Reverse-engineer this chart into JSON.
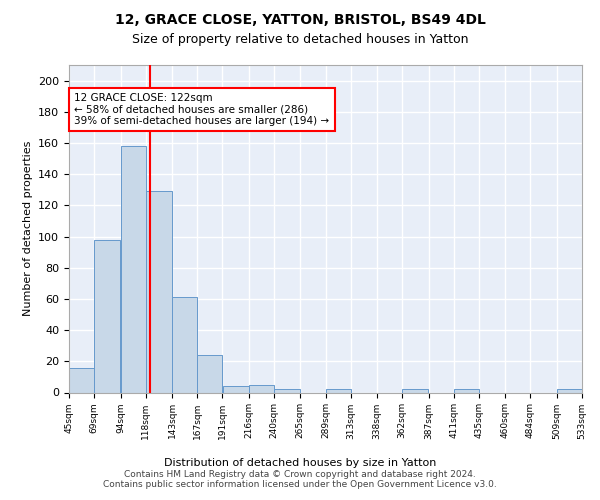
{
  "title": "12, GRACE CLOSE, YATTON, BRISTOL, BS49 4DL",
  "subtitle": "Size of property relative to detached houses in Yatton",
  "xlabel": "Distribution of detached houses by size in Yatton",
  "ylabel": "Number of detached properties",
  "bar_color": "#c8d8e8",
  "bar_edge_color": "#6699cc",
  "background_color": "#e8eef8",
  "grid_color": "#ffffff",
  "red_line_x": 122,
  "annotation_text": "12 GRACE CLOSE: 122sqm\n← 58% of detached houses are smaller (286)\n39% of semi-detached houses are larger (194) →",
  "bin_edges": [
    45,
    69,
    94,
    118,
    143,
    167,
    191,
    216,
    240,
    265,
    289,
    313,
    338,
    362,
    387,
    411,
    435,
    460,
    484,
    509,
    533
  ],
  "bin_counts": [
    16,
    98,
    158,
    129,
    61,
    24,
    4,
    5,
    2,
    0,
    2,
    0,
    0,
    2,
    0,
    2,
    0,
    0,
    0,
    2
  ],
  "ylim": [
    0,
    210
  ],
  "yticks": [
    0,
    20,
    40,
    60,
    80,
    100,
    120,
    140,
    160,
    180,
    200
  ],
  "footer_text": "Contains HM Land Registry data © Crown copyright and database right 2024.\nContains public sector information licensed under the Open Government Licence v3.0.",
  "tick_labels": [
    "45sqm",
    "69sqm",
    "94sqm",
    "118sqm",
    "143sqm",
    "167sqm",
    "191sqm",
    "216sqm",
    "240sqm",
    "265sqm",
    "289sqm",
    "313sqm",
    "338sqm",
    "362sqm",
    "387sqm",
    "411sqm",
    "435sqm",
    "460sqm",
    "484sqm",
    "509sqm",
    "533sqm"
  ]
}
